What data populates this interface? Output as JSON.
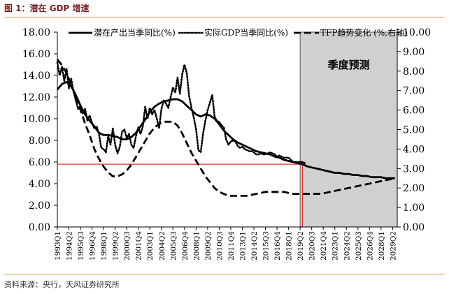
{
  "figure": {
    "title": "图 1：潜在 GDP 增速",
    "source": "资料来源：央行，天风证券研究所"
  },
  "chart_data": {
    "type": "line",
    "forecast_label": "季度预测",
    "forecast_start": "2019Q2",
    "left_axis": {
      "ylim": [
        0,
        18
      ],
      "ticks": [
        "0.00",
        "2.00",
        "4.00",
        "6.00",
        "8.00",
        "10.00",
        "12.00",
        "14.00",
        "16.00",
        "18.00"
      ]
    },
    "right_axis": {
      "ylim": [
        0,
        10
      ],
      "ticks": [
        "0.00",
        "1.00",
        "2.00",
        "3.00",
        "4.00",
        "5.00",
        "6.00",
        "7.00",
        "8.00",
        "9.00",
        "10.00"
      ]
    },
    "x_ticks": [
      "1993Q1",
      "1994Q2",
      "1995Q3",
      "1996Q4",
      "1998Q1",
      "1999Q2",
      "2000Q3",
      "2001Q4",
      "2003Q1",
      "2004Q2",
      "2005Q3",
      "2006Q4",
      "2008Q1",
      "2009Q2",
      "2010Q3",
      "2011Q4",
      "2013Q1",
      "2014Q2",
      "2015Q3",
      "2016Q4",
      "2018Q1",
      "2019Q2",
      "2020Q3",
      "2021Q4",
      "2023Q1",
      "2024Q2",
      "2025Q3",
      "2026Q4",
      "2028Q1",
      "2029Q2"
    ],
    "reference_lines": {
      "horizontal_y": 5.8,
      "vertical_x": "2019Q3",
      "color": "#e03030"
    },
    "legend_placement": "top",
    "series": [
      {
        "name": "潜在产出当季同比(%)",
        "axis": "left",
        "style": "solid",
        "points": [
          [
            "1993Q1",
            12.7
          ],
          [
            "1993Q3",
            13.2
          ],
          [
            "1994Q1",
            13.4
          ],
          [
            "1994Q3",
            13.0
          ],
          [
            "1995Q1",
            12.2
          ],
          [
            "1995Q3",
            11.2
          ],
          [
            "1996Q1",
            10.4
          ],
          [
            "1996Q3",
            9.8
          ],
          [
            "1997Q1",
            9.3
          ],
          [
            "1997Q3",
            8.7
          ],
          [
            "1998Q1",
            8.5
          ],
          [
            "1998Q3",
            8.5
          ],
          [
            "1999Q1",
            8.4
          ],
          [
            "1999Q3",
            8.3
          ],
          [
            "2000Q1",
            8.1
          ],
          [
            "2000Q3",
            8.1
          ],
          [
            "2001Q1",
            8.3
          ],
          [
            "2001Q3",
            8.7
          ],
          [
            "2002Q1",
            9.3
          ],
          [
            "2002Q3",
            9.9
          ],
          [
            "2003Q1",
            10.6
          ],
          [
            "2003Q3",
            11.1
          ],
          [
            "2004Q1",
            11.4
          ],
          [
            "2004Q3",
            11.6
          ],
          [
            "2005Q1",
            11.7
          ],
          [
            "2005Q3",
            11.8
          ],
          [
            "2006Q1",
            11.8
          ],
          [
            "2006Q3",
            11.6
          ],
          [
            "2007Q1",
            11.2
          ],
          [
            "2007Q3",
            10.8
          ],
          [
            "2008Q1",
            10.4
          ],
          [
            "2008Q3",
            10.2
          ],
          [
            "2009Q1",
            10.4
          ],
          [
            "2009Q3",
            10.3
          ],
          [
            "2010Q1",
            10.0
          ],
          [
            "2010Q3",
            9.5
          ],
          [
            "2011Q1",
            8.9
          ],
          [
            "2011Q3",
            8.5
          ],
          [
            "2012Q1",
            8.1
          ],
          [
            "2012Q3",
            7.8
          ],
          [
            "2013Q1",
            7.6
          ],
          [
            "2013Q3",
            7.4
          ],
          [
            "2014Q1",
            7.2
          ],
          [
            "2014Q3",
            7.0
          ],
          [
            "2015Q1",
            6.9
          ],
          [
            "2015Q3",
            6.8
          ],
          [
            "2016Q1",
            6.7
          ],
          [
            "2016Q3",
            6.5
          ],
          [
            "2017Q1",
            6.4
          ],
          [
            "2017Q3",
            6.2
          ],
          [
            "2018Q1",
            6.1
          ],
          [
            "2018Q3",
            6.0
          ],
          [
            "2019Q1",
            5.9
          ],
          [
            "2019Q3",
            5.8
          ],
          [
            "2020Q1",
            5.6
          ],
          [
            "2020Q3",
            5.5
          ],
          [
            "2021Q1",
            5.4
          ],
          [
            "2021Q3",
            5.3
          ],
          [
            "2022Q1",
            5.2
          ],
          [
            "2022Q3",
            5.1
          ],
          [
            "2023Q1",
            5.0
          ],
          [
            "2023Q3",
            5.0
          ],
          [
            "2024Q1",
            4.9
          ],
          [
            "2024Q3",
            4.9
          ],
          [
            "2025Q1",
            4.8
          ],
          [
            "2025Q3",
            4.8
          ],
          [
            "2026Q1",
            4.7
          ],
          [
            "2026Q3",
            4.7
          ],
          [
            "2027Q1",
            4.6
          ],
          [
            "2027Q3",
            4.6
          ],
          [
            "2028Q1",
            4.6
          ],
          [
            "2028Q3",
            4.5
          ],
          [
            "2029Q1",
            4.5
          ],
          [
            "2029Q3",
            4.5
          ]
        ]
      },
      {
        "name": "实际GDP当季同比(%)",
        "axis": "left",
        "style": "dotted",
        "points": [
          [
            "1993Q1",
            15.2
          ],
          [
            "1993Q2",
            14.0
          ],
          [
            "1993Q3",
            14.8
          ],
          [
            "1993Q4",
            13.5
          ],
          [
            "1994Q1",
            14.6
          ],
          [
            "1994Q2",
            12.8
          ],
          [
            "1994Q3",
            13.7
          ],
          [
            "1994Q4",
            12.5
          ],
          [
            "1995Q1",
            11.7
          ],
          [
            "1995Q2",
            10.9
          ],
          [
            "1995Q3",
            11.2
          ],
          [
            "1995Q4",
            10.5
          ],
          [
            "1996Q1",
            10.9
          ],
          [
            "1996Q2",
            9.8
          ],
          [
            "1996Q3",
            10.3
          ],
          [
            "1996Q4",
            9.6
          ],
          [
            "1997Q1",
            9.1
          ],
          [
            "1997Q2",
            9.3
          ],
          [
            "1997Q3",
            8.6
          ],
          [
            "1997Q4",
            7.3
          ],
          [
            "1998Q1",
            7.2
          ],
          [
            "1998Q2",
            6.9
          ],
          [
            "1998Q3",
            8.4
          ],
          [
            "1998Q4",
            7.6
          ],
          [
            "1999Q1",
            9.1
          ],
          [
            "1999Q2",
            7.6
          ],
          [
            "1999Q3",
            6.8
          ],
          [
            "1999Q4",
            7.4
          ],
          [
            "2000Q1",
            8.8
          ],
          [
            "2000Q2",
            9.0
          ],
          [
            "2000Q3",
            8.2
          ],
          [
            "2000Q4",
            8.6
          ],
          [
            "2001Q1",
            7.6
          ],
          [
            "2001Q2",
            7.3
          ],
          [
            "2001Q3",
            8.4
          ],
          [
            "2001Q4",
            9.2
          ],
          [
            "2002Q1",
            8.6
          ],
          [
            "2002Q2",
            9.3
          ],
          [
            "2002Q3",
            11.1
          ],
          [
            "2002Q4",
            10.0
          ],
          [
            "2003Q1",
            11.0
          ],
          [
            "2003Q2",
            10.4
          ],
          [
            "2003Q3",
            10.8
          ],
          [
            "2003Q4",
            10.0
          ],
          [
            "2004Q1",
            9.1
          ],
          [
            "2004Q2",
            10.9
          ],
          [
            "2004Q3",
            11.7
          ],
          [
            "2004Q4",
            11.4
          ],
          [
            "2005Q1",
            11.0
          ],
          [
            "2005Q2",
            12.0
          ],
          [
            "2005Q3",
            12.9
          ],
          [
            "2005Q4",
            12.4
          ],
          [
            "2006Q1",
            13.8
          ],
          [
            "2006Q2",
            12.3
          ],
          [
            "2006Q3",
            14.1
          ],
          [
            "2006Q4",
            15.0
          ],
          [
            "2007Q1",
            14.2
          ],
          [
            "2007Q2",
            12.1
          ],
          [
            "2007Q3",
            11.0
          ],
          [
            "2007Q4",
            10.1
          ],
          [
            "2008Q1",
            9.0
          ],
          [
            "2008Q2",
            7.1
          ],
          [
            "2008Q3",
            6.9
          ],
          [
            "2008Q4",
            8.6
          ],
          [
            "2009Q1",
            9.8
          ],
          [
            "2009Q2",
            10.8
          ],
          [
            "2009Q3",
            11.5
          ],
          [
            "2009Q4",
            12.2
          ],
          [
            "2010Q1",
            10.2
          ],
          [
            "2010Q2",
            9.8
          ],
          [
            "2010Q3",
            9.7
          ],
          [
            "2010Q4",
            9.4
          ],
          [
            "2011Q1",
            9.2
          ],
          [
            "2011Q2",
            8.1
          ],
          [
            "2011Q3",
            7.6
          ],
          [
            "2011Q4",
            7.9
          ],
          [
            "2012Q1",
            8.0
          ],
          [
            "2012Q2",
            7.9
          ],
          [
            "2012Q3",
            7.5
          ],
          [
            "2012Q4",
            7.3
          ],
          [
            "2013Q1",
            7.4
          ],
          [
            "2013Q2",
            7.2
          ],
          [
            "2013Q3",
            7.1
          ],
          [
            "2013Q4",
            7.0
          ],
          [
            "2014Q1",
            7.0
          ],
          [
            "2014Q2",
            6.9
          ],
          [
            "2014Q3",
            6.7
          ],
          [
            "2014Q4",
            6.7
          ],
          [
            "2015Q1",
            6.8
          ],
          [
            "2015Q2",
            6.7
          ],
          [
            "2015Q3",
            6.7
          ],
          [
            "2015Q4",
            6.8
          ],
          [
            "2016Q1",
            6.9
          ],
          [
            "2016Q2",
            6.8
          ],
          [
            "2016Q3",
            6.7
          ],
          [
            "2016Q4",
            6.5
          ],
          [
            "2017Q1",
            6.6
          ],
          [
            "2017Q2",
            6.5
          ],
          [
            "2017Q3",
            6.4
          ],
          [
            "2017Q4",
            6.4
          ],
          [
            "2018Q1",
            6.4
          ],
          [
            "2018Q2",
            6.2
          ],
          [
            "2018Q3",
            6.0
          ],
          [
            "2018Q4",
            6.0
          ],
          [
            "2019Q1",
            6.0
          ],
          [
            "2019Q2",
            6.0
          ],
          [
            "2019Q3",
            6.0
          ],
          [
            "2019Q4",
            5.9
          ]
        ]
      },
      {
        "name": "TFP趋势变化 (%,右轴)",
        "axis": "right",
        "style": "dashed",
        "points": [
          [
            "1993Q1",
            8.6
          ],
          [
            "1993Q3",
            8.3
          ],
          [
            "1994Q1",
            7.9
          ],
          [
            "1994Q3",
            7.3
          ],
          [
            "1995Q1",
            6.7
          ],
          [
            "1995Q3",
            6.0
          ],
          [
            "1996Q1",
            5.3
          ],
          [
            "1996Q3",
            4.7
          ],
          [
            "1997Q1",
            4.0
          ],
          [
            "1997Q3",
            3.5
          ],
          [
            "1998Q1",
            3.1
          ],
          [
            "1998Q3",
            2.8
          ],
          [
            "1999Q1",
            2.6
          ],
          [
            "1999Q3",
            2.6
          ],
          [
            "2000Q1",
            2.7
          ],
          [
            "2000Q3",
            2.9
          ],
          [
            "2001Q1",
            3.2
          ],
          [
            "2001Q3",
            3.6
          ],
          [
            "2002Q1",
            4.0
          ],
          [
            "2002Q3",
            4.4
          ],
          [
            "2003Q1",
            4.8
          ],
          [
            "2003Q3",
            5.1
          ],
          [
            "2004Q1",
            5.3
          ],
          [
            "2004Q3",
            5.4
          ],
          [
            "2005Q1",
            5.4
          ],
          [
            "2005Q3",
            5.4
          ],
          [
            "2006Q1",
            5.2
          ],
          [
            "2006Q3",
            4.8
          ],
          [
            "2007Q1",
            4.3
          ],
          [
            "2007Q3",
            3.8
          ],
          [
            "2008Q1",
            3.4
          ],
          [
            "2008Q3",
            3.0
          ],
          [
            "2009Q1",
            2.6
          ],
          [
            "2009Q3",
            2.3
          ],
          [
            "2010Q1",
            2.0
          ],
          [
            "2010Q3",
            1.8
          ],
          [
            "2011Q1",
            1.7
          ],
          [
            "2011Q3",
            1.6
          ],
          [
            "2012Q1",
            1.6
          ],
          [
            "2012Q3",
            1.6
          ],
          [
            "2013Q1",
            1.6
          ],
          [
            "2013Q3",
            1.6
          ],
          [
            "2014Q1",
            1.65
          ],
          [
            "2014Q3",
            1.7
          ],
          [
            "2015Q1",
            1.75
          ],
          [
            "2015Q3",
            1.8
          ],
          [
            "2016Q1",
            1.8
          ],
          [
            "2016Q3",
            1.8
          ],
          [
            "2017Q1",
            1.8
          ],
          [
            "2017Q3",
            1.8
          ],
          [
            "2018Q1",
            1.75
          ],
          [
            "2018Q3",
            1.7
          ],
          [
            "2019Q1",
            1.7
          ],
          [
            "2019Q3",
            1.7
          ],
          [
            "2020Q1",
            1.7
          ],
          [
            "2020Q3",
            1.7
          ],
          [
            "2021Q1",
            1.7
          ],
          [
            "2021Q3",
            1.7
          ],
          [
            "2022Q1",
            1.75
          ],
          [
            "2022Q3",
            1.8
          ],
          [
            "2023Q1",
            1.85
          ],
          [
            "2023Q3",
            1.9
          ],
          [
            "2024Q1",
            1.95
          ],
          [
            "2024Q3",
            2.0
          ],
          [
            "2025Q1",
            2.05
          ],
          [
            "2025Q3",
            2.1
          ],
          [
            "2026Q1",
            2.15
          ],
          [
            "2026Q3",
            2.2
          ],
          [
            "2027Q1",
            2.25
          ],
          [
            "2027Q3",
            2.3
          ],
          [
            "2028Q1",
            2.35
          ],
          [
            "2028Q3",
            2.4
          ],
          [
            "2029Q1",
            2.45
          ],
          [
            "2029Q3",
            2.5
          ]
        ]
      }
    ]
  }
}
